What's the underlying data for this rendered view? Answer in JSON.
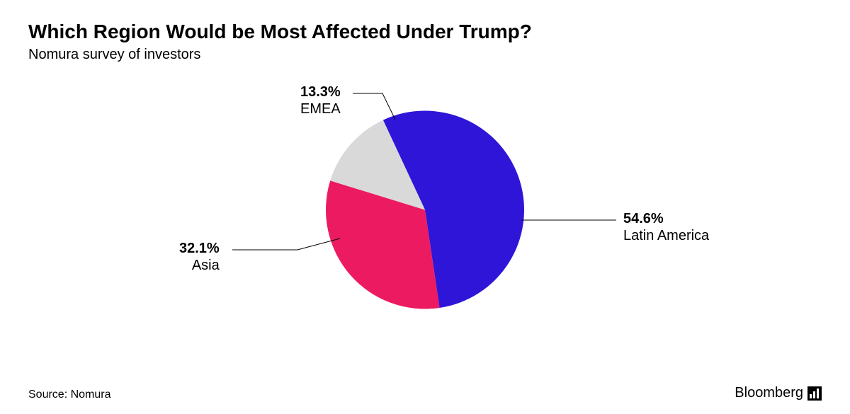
{
  "title": "Which Region Would be Most Affected Under Trump?",
  "subtitle": "Nomura survey of investors",
  "source_label": "Source: Nomura",
  "brand": "Bloomberg",
  "chart": {
    "type": "pie",
    "radius": 140,
    "background_color": "#ffffff",
    "start_angle_deg": -25,
    "text_color": "#000000",
    "label_fontsize_pt": 15,
    "title_fontsize_pt": 21,
    "subtitle_fontsize_pt": 15,
    "slices": [
      {
        "label": "Latin America",
        "value": 54.6,
        "percent_text": "54.6%",
        "color": "#2f15d8"
      },
      {
        "label": "Asia",
        "value": 32.1,
        "percent_text": "32.1%",
        "color": "#ec1a61"
      },
      {
        "label": "EMEA",
        "value": 13.3,
        "percent_text": "13.3%",
        "color": "#d9d9d9"
      }
    ]
  }
}
